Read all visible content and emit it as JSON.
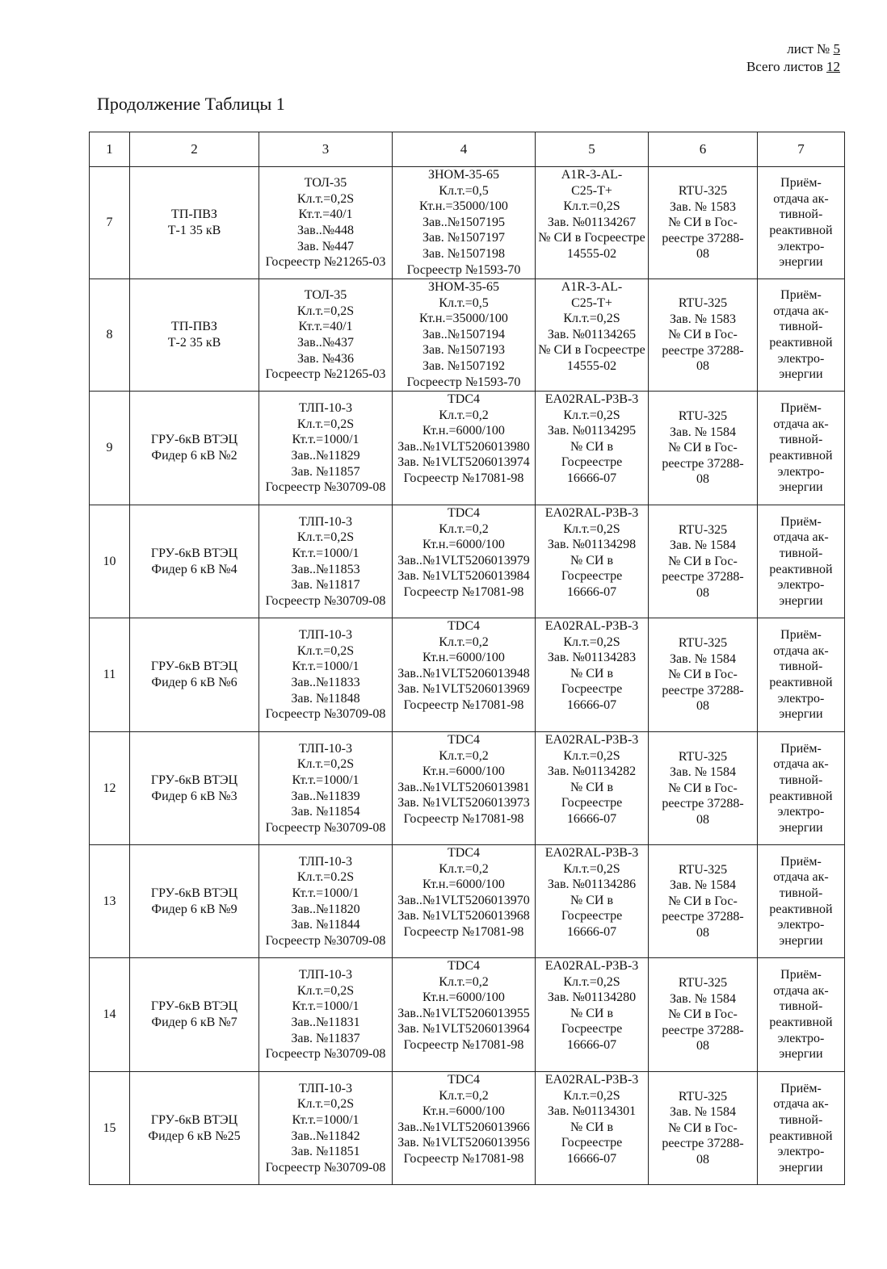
{
  "header": {
    "sheet_label": "лист №",
    "sheet_number": "5",
    "total_label": "Всего листов",
    "total_number": "12"
  },
  "title": "Продолжение Таблицы 1",
  "table": {
    "columns": [
      "1",
      "2",
      "3",
      "4",
      "5",
      "6",
      "7"
    ],
    "rows": [
      [
        "7",
        "ТП-ПВЗ\nТ-1 35 кВ",
        "ТОЛ-35\nКл.т.=0,2S\nКт.т.=40/1\nЗав..№448\nЗав. №447\nГосреестр №21265-03",
        "ЗНОМ-35-65\nКл.т.=0,5\nКт.н.=35000/100\nЗав..№1507195\nЗав. №1507197\nЗав. №1507198\nГосреестр №1593-70",
        "А1R-3-AL-\nC25-T+\nКл.т.=0,2S\nЗав. №01134267\n№ СИ в Госреестре\n14555-02",
        "RTU-325\nЗав. № 1583\n№ СИ в Гос-\nреестре 37288-\n08",
        "Приём-\nотдача ак-\nтивной-\nреактивной\nэлектро-\nэнергии"
      ],
      [
        "8",
        "ТП-ПВЗ\nТ-2 35 кВ",
        "ТОЛ-35\nКл.т.=0,2S\nКт.т.=40/1\nЗав..№437\nЗав. №436\nГосреестр №21265-03",
        "ЗНОМ-35-65\nКл.т.=0,5\nКт.н.=35000/100\nЗав..№1507194\nЗав. №1507193\nЗав. №1507192\nГосреестр №1593-70",
        "А1R-3-AL-\nC25-T+\nКл.т.=0,2S\nЗав. №01134265\n№ СИ в Госреестре\n14555-02",
        "RTU-325\nЗав. № 1583\n№ СИ в Гос-\nреестре 37288-\n08",
        "Приём-\nотдача ак-\nтивной-\nреактивной\nэлектро-\nэнергии"
      ],
      [
        "9",
        "ГРУ-6кВ ВТЭЦ\nФидер 6 кВ №2",
        "ТЛП-10-3\nКл.т.=0,2S\nКт.т.=1000/1\nЗав..№11829\nЗав. №11857\nГосреестр №30709-08",
        "TDC4\nКл.т.=0,2\nКт.н.=6000/100\nЗав..№1VLT5206013980\nЗав. №1VLT5206013974\nГосреестр №17081-98",
        "EA02RAL-P3B-3\nКл.т.=0,2S\nЗав. №01134295\n№ СИ в\nГосреестре\n16666-07",
        "RTU-325\nЗав. № 1584\n№ СИ в Гос-\nреестре 37288-\n08",
        "Приём-\nотдача ак-\nтивной-\nреактивной\nэлектро-\nэнергии"
      ],
      [
        "10",
        "ГРУ-6кВ ВТЭЦ\nФидер 6 кВ №4",
        "ТЛП-10-3\nКл.т.=0,2S\nКт.т.=1000/1\nЗав..№11853\nЗав. №11817\nГосреестр №30709-08",
        "TDC4\nКл.т.=0,2\nКт.н.=6000/100\nЗав..№1VLT5206013979\nЗав. №1VLT5206013984\nГосреестр №17081-98",
        "EA02RAL-P3B-3\nКл.т.=0,2S\nЗав. №01134298\n№ СИ в\nГосреестре\n16666-07",
        "RTU-325\nЗав. № 1584\n№ СИ в Гос-\nреестре 37288-\n08",
        "Приём-\nотдача ак-\nтивной-\nреактивной\nэлектро-\nэнергии"
      ],
      [
        "11",
        "ГРУ-6кВ ВТЭЦ\nФидер 6 кВ №6",
        "ТЛП-10-3\nКл.т.=0,2S\nКт.т.=1000/1\nЗав..№11833\nЗав. №11848\nГосреестр №30709-08",
        "TDC4\nКл.т.=0,2\nКт.н.=6000/100\nЗав..№1VLT5206013948\nЗав. №1VLT5206013969\nГосреестр №17081-98",
        "EA02RAL-P3B-3\nКл.т.=0,2S\nЗав. №01134283\n№ СИ в\nГосреестре\n16666-07",
        "RTU-325\nЗав. № 1584\n№ СИ в Гос-\nреестре 37288-\n08",
        "Приём-\nотдача ак-\nтивной-\nреактивной\nэлектро-\nэнергии"
      ],
      [
        "12",
        "ГРУ-6кВ ВТЭЦ\nФидер 6 кВ №3",
        "ТЛП-10-3\nКл.т.=0,2S\nКт.т.=1000/1\nЗав..№11839\nЗав. №11854\nГосреестр №30709-08",
        "TDC4\nКл.т.=0,2\nКт.н.=6000/100\nЗав..№1VLT5206013981\nЗав. №1VLT5206013973\nГосреестр №17081-98",
        "EA02RAL-P3B-3\nКл.т.=0,2S\nЗав. №01134282\n№ СИ в\nГосреестре\n16666-07",
        "RTU-325\nЗав. № 1584\n№ СИ в Гос-\nреестре 37288-\n08",
        "Приём-\nотдача ак-\nтивной-\nреактивной\nэлектро-\nэнергии"
      ],
      [
        "13",
        "ГРУ-6кВ ВТЭЦ\nФидер 6 кВ №9",
        "ТЛП-10-3\nКл.т.=0.2S\nКт.т.=1000/1\nЗав..№11820\nЗав. №11844\nГосреестр №30709-08",
        "TDC4\nКл.т.=0,2\nКт.н.=6000/100\nЗав..№1VLT5206013970\nЗав. №1VLT5206013968\nГосреестр №17081-98",
        "EA02RAL-P3B-3\nКл.т.=0,2S\nЗав. №01134286\n№ СИ в\nГосреестре\n16666-07",
        "RTU-325\nЗав. № 1584\n№ СИ в Гос-\nреестре 37288-\n08",
        "Приём-\nотдача ак-\nтивной-\nреактивной\nэлектро-\nэнергии"
      ],
      [
        "14",
        "ГРУ-6кВ ВТЭЦ\nФидер 6 кВ №7",
        "ТЛП-10-3\nКл.т.=0,2S\nКт.т.=1000/1\nЗав..№11831\nЗав. №11837\nГосреестр №30709-08",
        "TDC4\nКл.т.=0,2\nКт.н.=6000/100\nЗав..№1VLT5206013955\nЗав. №1VLT5206013964\nГосреестр №17081-98",
        "EA02RAL-P3B-3\nКл.т.=0,2S\nЗав. №01134280\n№ СИ в\nГосреестре\n16666-07",
        "RTU-325\nЗав. № 1584\n№ СИ в Гос-\nреестре 37288-\n08",
        "Приём-\nотдача ак-\nтивной-\nреактивной\nэлектро-\nэнергии"
      ],
      [
        "15",
        "ГРУ-6кВ ВТЭЦ\nФидер 6 кВ №25",
        "ТЛП-10-3\nКл.т.=0,2S\nКт.т.=1000/1\nЗав..№11842\nЗав. №11851\nГосреестр №30709-08",
        "TDC4\nКл.т.=0,2\nКт.н.=6000/100\nЗав..№1VLT5206013966\nЗав. №1VLT5206013956\nГосреестр №17081-98",
        "EA02RAL-P3B-3\nКл.т.=0,2S\nЗав. №01134301\n№ СИ в\nГосреестре\n16666-07",
        "RTU-325\nЗав. № 1584\n№ СИ в Гос-\nреестре 37288-\n08",
        "Приём-\nотдача ак-\nтивной-\nреактивной\nэлектро-\nэнергии"
      ]
    ]
  }
}
